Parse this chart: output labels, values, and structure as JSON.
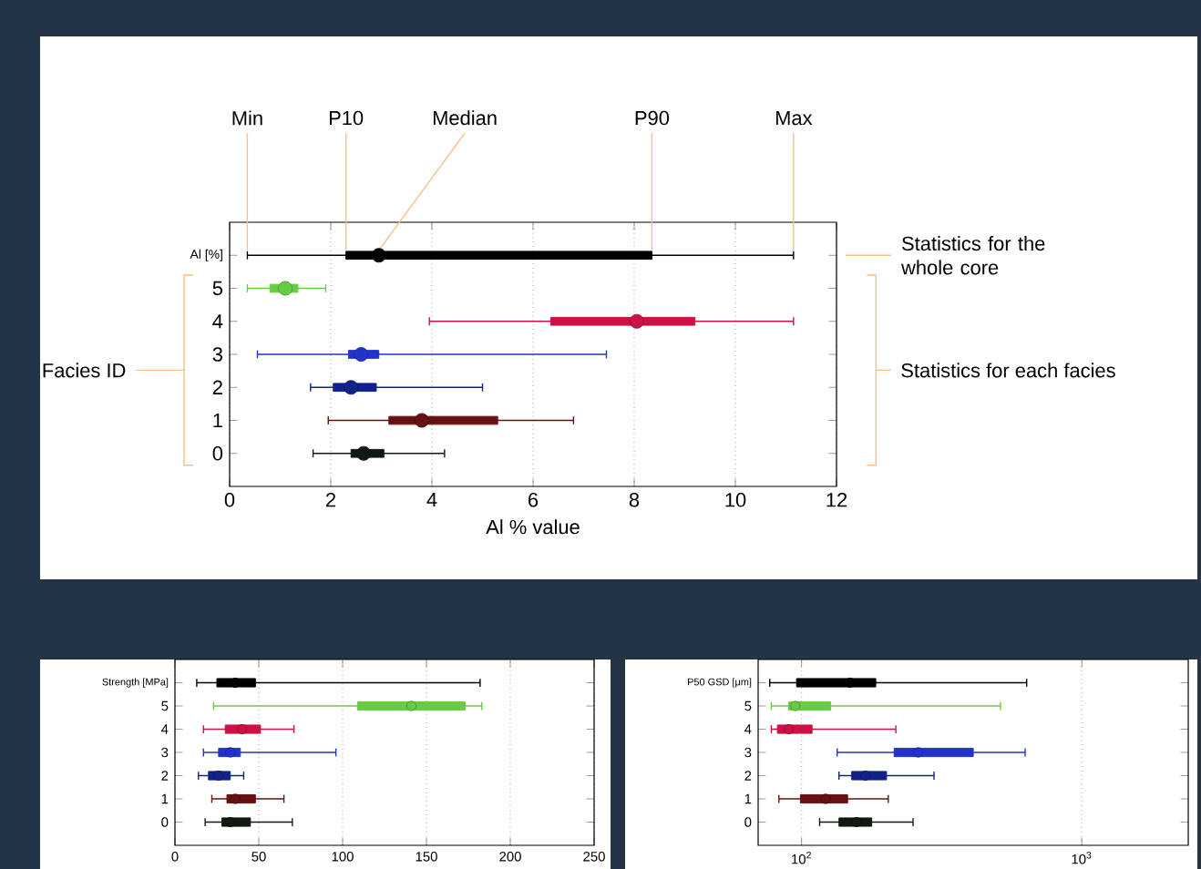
{
  "chart_data": [
    {
      "type": "box",
      "orientation": "horizontal",
      "xlabel": "Al % value",
      "ylabel": "Facies ID",
      "categories": [
        "Al [%]",
        "5",
        "4",
        "3",
        "2",
        "1",
        "0"
      ],
      "colors": [
        "#000000",
        "#66cc44",
        "#cc1144",
        "#2233cc",
        "#112288",
        "#661111",
        "#111a11"
      ],
      "boxes": [
        {
          "low": 0.35,
          "q1": 2.3,
          "median": 2.95,
          "q3": 8.35,
          "high": 11.15
        },
        {
          "low": 0.35,
          "q1": 0.8,
          "median": 1.1,
          "q3": 1.35,
          "high": 1.9
        },
        {
          "low": 3.95,
          "q1": 6.35,
          "median": 8.05,
          "q3": 9.2,
          "high": 11.15
        },
        {
          "low": 0.55,
          "q1": 2.35,
          "median": 2.6,
          "q3": 2.95,
          "high": 7.45
        },
        {
          "low": 1.6,
          "q1": 2.05,
          "median": 2.4,
          "q3": 2.9,
          "high": 5.0
        },
        {
          "low": 1.95,
          "q1": 3.15,
          "median": 3.8,
          "q3": 5.3,
          "high": 6.8
        },
        {
          "low": 1.65,
          "q1": 2.4,
          "median": 2.65,
          "q3": 3.05,
          "high": 4.25
        }
      ],
      "xlim": [
        0,
        12
      ],
      "xticks": [
        0,
        2,
        4,
        6,
        8,
        10,
        12
      ],
      "grid": "x",
      "annotations": [
        {
          "text": "Min",
          "x": 0.35,
          "y": "Al [%]"
        },
        {
          "text": "P10",
          "x": 2.3,
          "y": "Al [%]"
        },
        {
          "text": "Median",
          "x": 2.95,
          "y": "Al [%]"
        },
        {
          "text": "P90",
          "x": 8.35,
          "y": "Al [%]"
        },
        {
          "text": "Max",
          "x": 11.15,
          "y": "Al [%]"
        },
        "Statistics for the whole core",
        "Statistics for each facies"
      ]
    },
    {
      "type": "box",
      "orientation": "horizontal",
      "categories": [
        "Strength [MPa]",
        "5",
        "4",
        "3",
        "2",
        "1",
        "0"
      ],
      "colors": [
        "#000000",
        "#66cc44",
        "#cc1144",
        "#2233cc",
        "#112288",
        "#661111",
        "#111a11"
      ],
      "boxes": [
        {
          "low": 13,
          "q1": 25,
          "median": 36,
          "q3": 48,
          "high": 182
        },
        {
          "low": 23,
          "q1": 109,
          "median": 141,
          "q3": 173,
          "high": 183
        },
        {
          "low": 17,
          "q1": 30,
          "median": 40,
          "q3": 51,
          "high": 71
        },
        {
          "low": 17,
          "q1": 26,
          "median": 33,
          "q3": 39,
          "high": 96
        },
        {
          "low": 14,
          "q1": 20,
          "median": 26,
          "q3": 33,
          "high": 41
        },
        {
          "low": 22,
          "q1": 31,
          "median": 36,
          "q3": 48,
          "high": 65
        },
        {
          "low": 18,
          "q1": 28,
          "median": 33,
          "q3": 45,
          "high": 70
        }
      ],
      "xlim": [
        0,
        250
      ],
      "xticks": [
        0,
        50,
        100,
        150,
        200,
        250
      ],
      "grid": "x"
    },
    {
      "type": "box",
      "orientation": "horizontal",
      "log": "x",
      "categories": [
        "P50 GSD [μm]",
        "5",
        "4",
        "3",
        "2",
        "1",
        "0"
      ],
      "colors": [
        "#000000",
        "#66cc44",
        "#cc1144",
        "#2233cc",
        "#112288",
        "#661111",
        "#111a11"
      ],
      "boxes": [
        {
          "low": 77,
          "q1": 96,
          "median": 149,
          "q3": 184,
          "high": 636
        },
        {
          "low": 78,
          "q1": 90,
          "median": 95,
          "q3": 127,
          "high": 513
        },
        {
          "low": 78,
          "q1": 82,
          "median": 90,
          "q3": 109,
          "high": 217
        },
        {
          "low": 134,
          "q1": 214,
          "median": 261,
          "q3": 410,
          "high": 628
        },
        {
          "low": 136,
          "q1": 151,
          "median": 169,
          "q3": 201,
          "high": 297
        },
        {
          "low": 83,
          "q1": 99,
          "median": 122,
          "q3": 146,
          "high": 204
        },
        {
          "low": 116,
          "q1": 136,
          "median": 157,
          "q3": 178,
          "high": 250
        }
      ],
      "xlim": [
        70,
        2400
      ],
      "xticks": [
        {
          "value": 100,
          "label": "10$^{2}$"
        },
        {
          "value": 1000,
          "label": "10$^{3}$"
        }
      ],
      "grid": "x"
    }
  ]
}
